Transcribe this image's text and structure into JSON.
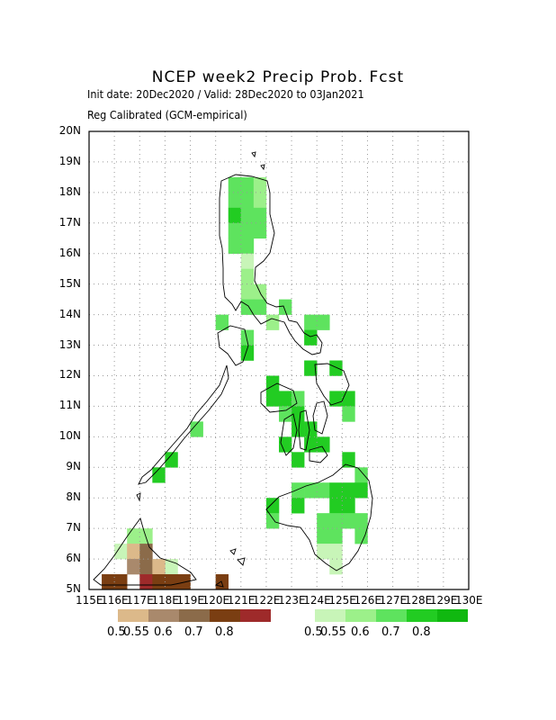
{
  "title": "NCEP week2 Precip Prob. Fcst",
  "subtitle_1": "Init date: 20Dec2020 / Valid: 28Dec2020 to 03Jan2021",
  "subtitle_2": "Reg Calibrated (GCM-empirical)",
  "y_ticks": [
    "20N",
    "19N",
    "18N",
    "17N",
    "16N",
    "15N",
    "14N",
    "13N",
    "12N",
    "11N",
    "10N",
    "9N",
    "8N",
    "7N",
    "6N",
    "5N"
  ],
  "x_ticks": [
    "115E",
    "116E",
    "117E",
    "118E",
    "119E",
    "120E",
    "121E",
    "122E",
    "123E",
    "124E",
    "125E",
    "126E",
    "127E",
    "128E",
    "129E",
    "130E"
  ],
  "legend_dry": {
    "colors": [
      "#dcb98a",
      "#a9896c",
      "#8b6b4a",
      "#7a3e12",
      "#9e2a2a"
    ],
    "labels": [
      "0.5",
      "0.55",
      "0.6",
      "0.7",
      "0.8"
    ]
  },
  "legend_wet": {
    "colors": [
      "#c8f5b8",
      "#9cf08a",
      "#5ee35e",
      "#22cc22",
      "#10b810"
    ],
    "labels": [
      "0.5",
      "0.55",
      "0.6",
      "0.7",
      "0.8"
    ]
  },
  "chart_data": {
    "type": "heatmap",
    "extent": {
      "lon": [
        115,
        130
      ],
      "lat": [
        5,
        20
      ]
    },
    "cell_deg": 0.5,
    "wet_cells": [
      [
        120.5,
        18.0,
        3
      ],
      [
        121.0,
        18.0,
        3
      ],
      [
        121.5,
        18.0,
        2
      ],
      [
        120.5,
        17.5,
        3
      ],
      [
        121.0,
        17.5,
        3
      ],
      [
        121.5,
        17.5,
        2
      ],
      [
        120.5,
        17.0,
        4
      ],
      [
        121.0,
        17.0,
        3
      ],
      [
        121.5,
        17.0,
        3
      ],
      [
        120.5,
        16.5,
        3
      ],
      [
        121.0,
        16.5,
        3
      ],
      [
        121.5,
        16.5,
        3
      ],
      [
        120.5,
        16.0,
        3
      ],
      [
        121.0,
        16.0,
        3
      ],
      [
        121.0,
        15.5,
        1
      ],
      [
        121.0,
        15.0,
        2
      ],
      [
        121.0,
        14.5,
        2
      ],
      [
        121.5,
        14.5,
        2
      ],
      [
        121.0,
        14.0,
        3
      ],
      [
        121.5,
        14.0,
        3
      ],
      [
        122.5,
        14.0,
        3
      ],
      [
        120.0,
        13.5,
        3
      ],
      [
        121.0,
        13.0,
        3
      ],
      [
        121.0,
        12.5,
        4
      ],
      [
        122.0,
        13.5,
        2
      ],
      [
        123.5,
        13.5,
        3
      ],
      [
        123.5,
        13.0,
        4
      ],
      [
        124.0,
        13.5,
        3
      ],
      [
        123.5,
        12.0,
        4
      ],
      [
        124.5,
        12.0,
        4
      ],
      [
        122.0,
        11.5,
        4
      ],
      [
        122.0,
        11.0,
        4
      ],
      [
        122.5,
        11.0,
        4
      ],
      [
        123.0,
        11.0,
        3
      ],
      [
        124.5,
        11.0,
        4
      ],
      [
        125.0,
        11.0,
        4
      ],
      [
        122.5,
        10.5,
        3
      ],
      [
        123.0,
        10.5,
        4
      ],
      [
        125.0,
        10.5,
        3
      ],
      [
        123.0,
        10.0,
        4
      ],
      [
        123.5,
        10.0,
        4
      ],
      [
        119.0,
        10.0,
        3
      ],
      [
        122.5,
        9.5,
        4
      ],
      [
        123.5,
        9.5,
        4
      ],
      [
        124.0,
        9.5,
        4
      ],
      [
        123.0,
        9.0,
        4
      ],
      [
        125.0,
        9.0,
        4
      ],
      [
        118.0,
        9.0,
        4
      ],
      [
        117.5,
        8.5,
        4
      ],
      [
        125.5,
        8.5,
        3
      ],
      [
        123.0,
        8.0,
        3
      ],
      [
        123.5,
        8.0,
        3
      ],
      [
        124.0,
        8.0,
        3
      ],
      [
        124.5,
        8.0,
        4
      ],
      [
        125.0,
        8.0,
        4
      ],
      [
        125.5,
        8.0,
        4
      ],
      [
        122.0,
        7.5,
        4
      ],
      [
        123.0,
        7.5,
        4
      ],
      [
        124.5,
        7.5,
        4
      ],
      [
        125.0,
        7.5,
        4
      ],
      [
        125.5,
        7.0,
        3
      ],
      [
        122.0,
        7.0,
        3
      ],
      [
        124.0,
        7.0,
        3
      ],
      [
        124.5,
        7.0,
        3
      ],
      [
        125.0,
        7.0,
        3
      ],
      [
        124.0,
        6.5,
        3
      ],
      [
        124.5,
        6.5,
        3
      ],
      [
        125.5,
        6.5,
        3
      ],
      [
        124.0,
        6.0,
        1
      ],
      [
        124.5,
        6.0,
        1
      ],
      [
        124.5,
        5.5,
        1
      ],
      [
        116.5,
        6.5,
        2
      ],
      [
        117.0,
        6.5,
        2
      ],
      [
        116.0,
        6.0,
        1
      ],
      [
        118.0,
        5.5,
        1
      ]
    ],
    "dry_cells": [
      [
        116.5,
        6.0,
        1
      ],
      [
        117.0,
        6.0,
        3
      ],
      [
        116.5,
        5.5,
        2
      ],
      [
        117.0,
        5.5,
        3
      ],
      [
        117.5,
        5.5,
        1
      ],
      [
        115.5,
        5.0,
        4
      ],
      [
        116.0,
        5.0,
        4
      ],
      [
        117.0,
        5.0,
        5
      ],
      [
        117.5,
        5.0,
        4
      ],
      [
        118.0,
        5.0,
        4
      ],
      [
        118.5,
        5.0,
        4
      ],
      [
        120.0,
        5.0,
        4
      ]
    ]
  }
}
